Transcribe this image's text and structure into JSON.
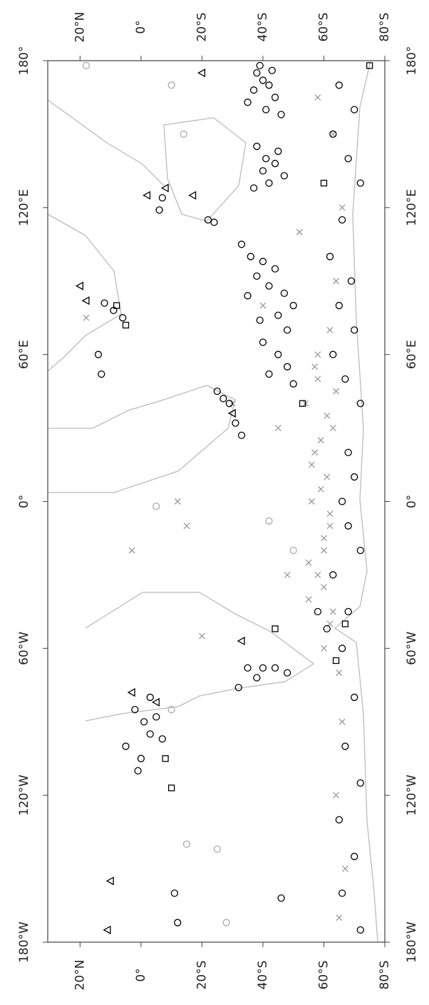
{
  "chart_data": {
    "type": "scatter",
    "xlim": [
      30.6,
      -80
    ],
    "ylim": [
      -180,
      180
    ],
    "xticks": [
      {
        "value": 20,
        "label": "20°N"
      },
      {
        "value": 0,
        "label": "0°"
      },
      {
        "value": -20,
        "label": "20°S"
      },
      {
        "value": -40,
        "label": "40°S"
      },
      {
        "value": -60,
        "label": "60°S"
      },
      {
        "value": -80,
        "label": "80°S"
      }
    ],
    "yticks": [
      {
        "value": -180,
        "label": "180°W"
      },
      {
        "value": -120,
        "label": "120°W"
      },
      {
        "value": -60,
        "label": "60°W"
      },
      {
        "value": 0,
        "label": "0°"
      },
      {
        "value": 60,
        "label": "60°E"
      },
      {
        "value": 120,
        "label": "120°E"
      },
      {
        "value": 180,
        "label": "180°"
      }
    ],
    "series": [
      {
        "color": "#999999",
        "marker": "x",
        "x": [
          -55,
          -58,
          -60,
          -62,
          -56,
          -59,
          -61,
          -57,
          -63,
          -54,
          -58,
          -60,
          -62,
          -56,
          -59,
          -61,
          -64,
          -57,
          -55,
          -60,
          -63,
          -58,
          -62,
          -66,
          -64,
          -67,
          -65,
          -63,
          -66,
          -64,
          -62,
          -65,
          -60,
          -45,
          -40,
          -30,
          -12,
          -15,
          -48,
          -20,
          3,
          18,
          -52,
          -58
        ],
        "y": [
          -40,
          -30,
          -20,
          -10,
          0,
          5,
          10,
          20,
          30,
          40,
          50,
          -35,
          -5,
          15,
          25,
          35,
          45,
          55,
          -25,
          -15,
          -45,
          60,
          -50,
          -90,
          -120,
          -150,
          -170,
          150,
          120,
          90,
          70,
          -70,
          -60,
          30,
          80,
          40,
          0,
          -10,
          -30,
          -55,
          -20,
          75,
          110,
          165
        ]
      },
      {
        "color": "#aaaaaa",
        "marker": "circle",
        "x": [
          18,
          -5,
          -10,
          -25,
          -28,
          -42,
          -50,
          -10,
          -14,
          -15
        ],
        "y": [
          178,
          -2,
          170,
          -142,
          -172,
          -8,
          -20,
          -85,
          150,
          -140
        ]
      },
      {
        "color": "#000000",
        "marker": "circle",
        "x": [
          -38,
          -40,
          -42,
          -37,
          -44,
          -35,
          -41,
          -46,
          -39,
          -43,
          -38,
          -41,
          -44,
          -40,
          -47,
          -42,
          -37,
          -45,
          -22,
          -24,
          -33,
          -36,
          -40,
          -44,
          -38,
          -42,
          -47,
          -35,
          -50,
          -45,
          -39,
          -48,
          -40,
          -45,
          -48,
          -42,
          -50,
          -25,
          -27,
          -29,
          -31,
          -33,
          -7,
          -6,
          12,
          9,
          6,
          14,
          13,
          2,
          -1,
          -3,
          5,
          0,
          -5,
          -3,
          -7,
          1,
          -35,
          -40,
          -44,
          -48,
          -38,
          -32,
          -65,
          -70,
          -63,
          -68,
          -72,
          -66,
          -62,
          -69,
          -65,
          -70,
          -63,
          -67,
          -72,
          -68,
          -70,
          -66,
          -68,
          -72,
          -63,
          -68,
          -66,
          -70,
          -67,
          -72,
          -65,
          -70,
          -66,
          -72,
          -58,
          -61,
          -11,
          -12,
          -46
        ],
        "y": [
          175,
          172,
          170,
          168,
          165,
          163,
          160,
          158,
          178,
          176,
          145,
          140,
          138,
          135,
          133,
          130,
          128,
          143,
          115,
          114,
          105,
          100,
          98,
          95,
          92,
          88,
          85,
          84,
          80,
          76,
          74,
          70,
          65,
          60,
          55,
          52,
          48,
          45,
          42,
          40,
          32,
          27,
          124,
          119,
          81,
          78,
          75,
          60,
          52,
          -85,
          -90,
          -95,
          -100,
          -105,
          -88,
          -80,
          -97,
          -110,
          -68,
          -68,
          -68,
          -70,
          -72,
          -76,
          170,
          160,
          150,
          140,
          130,
          115,
          100,
          90,
          80,
          70,
          60,
          50,
          40,
          20,
          10,
          0,
          -10,
          -20,
          -30,
          -45,
          -60,
          -80,
          -100,
          -115,
          -130,
          -145,
          -160,
          -175,
          -45,
          -52,
          -160,
          -172,
          -162
        ]
      },
      {
        "color": "#000000",
        "marker": "triangle",
        "x": [
          -20,
          -17,
          -2,
          20,
          18,
          -5,
          -33,
          3,
          10,
          11,
          -8,
          -30
        ],
        "y": [
          175,
          125,
          125,
          88,
          82,
          -82,
          -57,
          -78,
          -155,
          -175,
          128,
          36
        ]
      },
      {
        "color": "#000000",
        "marker": "square",
        "x": [
          8,
          5,
          -10,
          -53,
          -44,
          -64,
          -67,
          -75,
          -8,
          -60
        ],
        "y": [
          80,
          72,
          -117,
          40,
          -52,
          -65,
          -50,
          178,
          -105,
          130
        ]
      }
    ]
  }
}
